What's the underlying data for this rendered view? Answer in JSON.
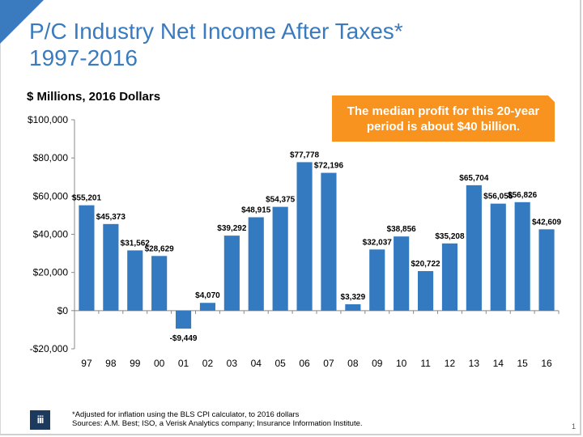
{
  "slide": {
    "title_line1": "P/C Industry Net Income After Taxes*",
    "title_line2": "1997-2016",
    "subtitle": "$ Millions, 2016 Dollars",
    "callout": "The median profit for this 20-year period is about $40 billion.",
    "footnote": "*Adjusted for inflation using the BLS CPI calculator, to 2016 dollars",
    "sources": "Sources: A.M. Best; ISO, a Verisk Analytics company; Insurance Information Institute.",
    "logo_text": "iii",
    "logo_icon": "iii-logo-icon",
    "page_number": "1",
    "colors": {
      "accent": "#3a7bbf",
      "bar": "#337ac0",
      "callout": "#f7931e",
      "logo_bg": "#1c3a5e"
    }
  },
  "chart_data": {
    "type": "bar",
    "title": "P/C Industry Net Income After Taxes* 1997-2016",
    "xlabel": "",
    "ylabel": "$ Millions, 2016 Dollars",
    "categories": [
      "97",
      "98",
      "99",
      "00",
      "01",
      "02",
      "03",
      "04",
      "05",
      "06",
      "07",
      "08",
      "09",
      "10",
      "11",
      "12",
      "13",
      "14",
      "15",
      "16"
    ],
    "values": [
      55201,
      45373,
      31562,
      28629,
      -9449,
      4070,
      39292,
      48915,
      54375,
      77778,
      72196,
      3329,
      32037,
      38856,
      20722,
      35208,
      65704,
      56055,
      56826,
      42609
    ],
    "data_labels": [
      "$55,201",
      "$45,373",
      "$31,562",
      "$28,629",
      "-$9,449",
      "$4,070",
      "$39,292",
      "$48,915",
      "$54,375",
      "$77,778",
      "$72,196",
      "$3,329",
      "$32,037",
      "$38,856",
      "$20,722",
      "$35,208",
      "$65,704",
      "$56,055",
      "$56,826",
      "$42,609"
    ],
    "ylim": [
      -20000,
      100000
    ],
    "yticks": [
      -20000,
      0,
      20000,
      40000,
      60000,
      80000,
      100000
    ],
    "ytick_labels": [
      "-$20,000",
      "$0",
      "$20,000",
      "$40,000",
      "$60,000",
      "$80,000",
      "$100,000"
    ],
    "grid": false,
    "legend": "none",
    "annotation": "The median profit for this 20-year period is about $40 billion."
  }
}
